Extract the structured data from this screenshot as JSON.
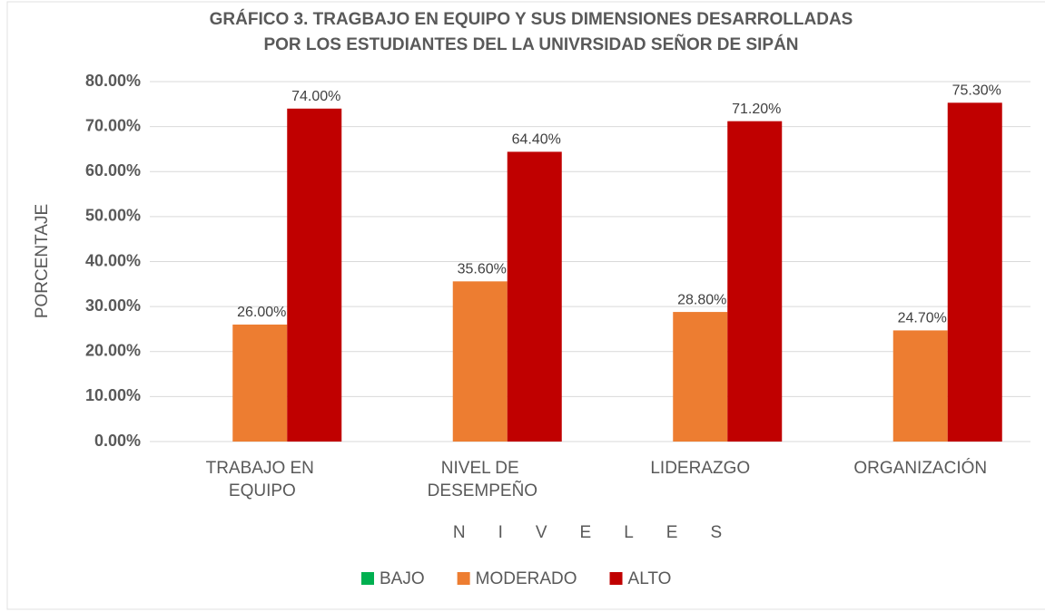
{
  "chart_data": {
    "type": "bar",
    "title": [
      "GRÁFICO 3. TRAGBAJO EN EQUIPO Y SUS DIMENSIONES DESARROLLADAS",
      "POR LOS ESTUDIANTES DEL LA UNIVRSIDAD SEÑOR DE SIPÁN"
    ],
    "x_label": "NIVELES",
    "y_label": "PORCENTAJE",
    "categories": [
      "TRABAJO EN EQUIPO",
      "NIVEL DE DESEMPEÑO",
      "LIDERAZGO",
      "ORGANIZACIÓN"
    ],
    "series": [
      {
        "name": "BAJO",
        "color": "#00b050",
        "values": [
          null,
          null,
          null,
          null
        ]
      },
      {
        "name": "MODERADO",
        "color": "#ed7d31",
        "values": [
          26,
          35.6,
          28.8,
          24.7
        ],
        "value_labels": [
          "26.00%",
          "35.60%",
          "28.80%",
          "24.70%"
        ]
      },
      {
        "name": "ALTO",
        "color": "#c00000",
        "values": [
          74,
          64.4,
          71.2,
          75.3
        ],
        "value_labels": [
          "74.00%",
          "64.40%",
          "71.20%",
          "75.30%"
        ]
      }
    ],
    "ylim": [
      0,
      80
    ],
    "yticks": [
      {
        "value": 0,
        "label": "0.00%"
      },
      {
        "value": 10,
        "label": "10.00%"
      },
      {
        "value": 20,
        "label": "20.00%"
      },
      {
        "value": 30,
        "label": "30.00%"
      },
      {
        "value": 40,
        "label": "40.00%"
      },
      {
        "value": 50,
        "label": "50.00%"
      },
      {
        "value": 60,
        "label": "60.00%"
      },
      {
        "value": 70,
        "label": "70.00%"
      },
      {
        "value": 80,
        "label": "80.00%"
      }
    ],
    "grid": true,
    "legend": "bottom"
  }
}
